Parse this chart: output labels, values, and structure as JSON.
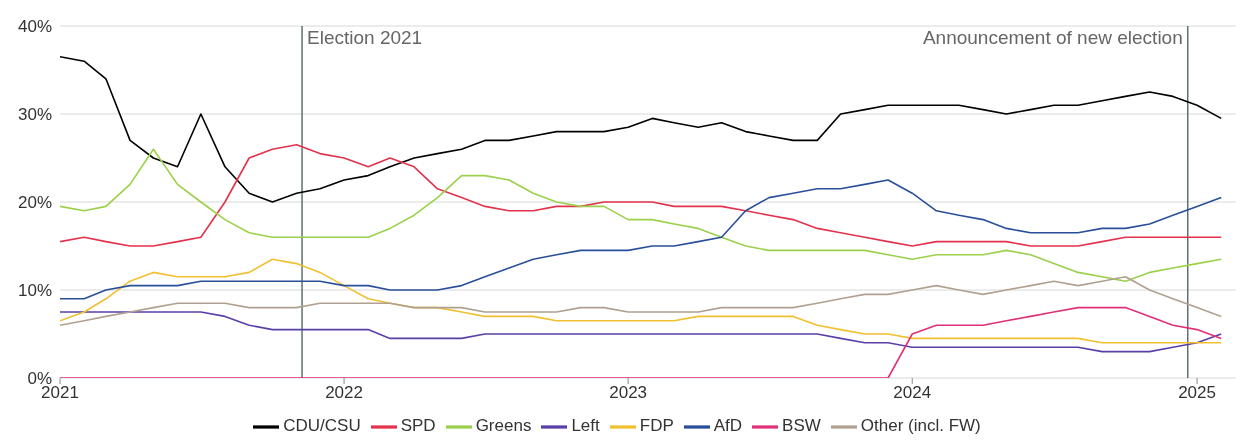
{
  "chart_data": {
    "type": "line",
    "x": [
      "2021-01",
      "2021-02",
      "2021-03",
      "2021-04",
      "2021-05",
      "2021-06",
      "2021-07",
      "2021-08",
      "2021-09",
      "2021-10",
      "2021-11",
      "2021-12",
      "2022-01",
      "2022-02",
      "2022-03",
      "2022-04",
      "2022-05",
      "2022-06",
      "2022-07",
      "2022-08",
      "2022-09",
      "2022-10",
      "2022-11",
      "2022-12",
      "2023-01",
      "2023-02",
      "2023-03",
      "2023-04",
      "2023-05",
      "2023-06",
      "2023-07",
      "2023-08",
      "2023-09",
      "2023-10",
      "2023-11",
      "2023-12",
      "2024-01",
      "2024-02",
      "2024-03",
      "2024-04",
      "2024-05",
      "2024-06",
      "2024-07",
      "2024-08",
      "2024-09",
      "2024-10",
      "2024-11",
      "2024-12",
      "2025-01",
      "2025-02"
    ],
    "series": [
      {
        "name": "CDU/CSU",
        "color": "#000000",
        "values": [
          36.5,
          36,
          34,
          27,
          25,
          24,
          30,
          24,
          21,
          20,
          21,
          21.5,
          22.5,
          23,
          24,
          25,
          25.5,
          26,
          27,
          27,
          27.5,
          28,
          28,
          28,
          28.5,
          29.5,
          29,
          28.5,
          29,
          28,
          27.5,
          27,
          27,
          30,
          30.5,
          31,
          31,
          31,
          31,
          30.5,
          30,
          30.5,
          31,
          31,
          31.5,
          32,
          32.5,
          32,
          31,
          29.5
        ]
      },
      {
        "name": "SPD",
        "color": "#e3324b",
        "values": [
          15.5,
          16,
          15.5,
          15,
          15,
          15.5,
          16,
          20,
          25,
          26,
          26.5,
          25.5,
          25,
          24,
          25,
          24,
          21.5,
          20.5,
          19.5,
          19,
          19,
          19.5,
          19.5,
          20,
          20,
          20,
          19.5,
          19.5,
          19.5,
          19,
          18.5,
          18,
          17,
          16.5,
          16,
          15.5,
          15,
          15.5,
          15.5,
          15.5,
          15.5,
          15,
          15,
          15,
          15.5,
          16,
          16,
          16,
          16,
          16
        ]
      },
      {
        "name": "Greens",
        "color": "#9bd04a",
        "values": [
          19.5,
          19,
          19.5,
          22,
          26,
          22,
          20,
          18,
          16.5,
          16,
          16,
          16,
          16,
          16,
          17,
          18.5,
          20.5,
          23,
          23,
          22.5,
          21,
          20,
          19.5,
          19.5,
          18,
          18,
          17.5,
          17,
          16,
          15,
          14.5,
          14.5,
          14.5,
          14.5,
          14.5,
          14,
          13.5,
          14,
          14,
          14,
          14.5,
          14,
          13,
          12,
          11.5,
          11,
          12,
          12.5,
          13,
          13.5
        ]
      },
      {
        "name": "Left",
        "color": "#5a3fa8",
        "values": [
          7.5,
          7.5,
          7.5,
          7.5,
          7.5,
          7.5,
          7.5,
          7,
          6,
          5.5,
          5.5,
          5.5,
          5.5,
          5.5,
          4.5,
          4.5,
          4.5,
          4.5,
          5,
          5,
          5,
          5,
          5,
          5,
          5,
          5,
          5,
          5,
          5,
          5,
          5,
          5,
          5,
          4.5,
          4,
          4,
          3.5,
          3.5,
          3.5,
          3.5,
          3.5,
          3.5,
          3.5,
          3.5,
          3,
          3,
          3,
          3.5,
          4,
          5
        ]
      },
      {
        "name": "FDP",
        "color": "#f0c030",
        "values": [
          6.5,
          7.5,
          9,
          11,
          12,
          11.5,
          11.5,
          11.5,
          12,
          13.5,
          13,
          12,
          10.5,
          9,
          8.5,
          8,
          8,
          7.5,
          7,
          7,
          7,
          6.5,
          6.5,
          6.5,
          6.5,
          6.5,
          6.5,
          7,
          7,
          7,
          7,
          7,
          6,
          5.5,
          5,
          5,
          4.5,
          4.5,
          4.5,
          4.5,
          4.5,
          4.5,
          4.5,
          4.5,
          4,
          4,
          4,
          4,
          4,
          4
        ]
      },
      {
        "name": "AfD",
        "color": "#2a4f9a",
        "values": [
          9,
          9,
          10,
          10.5,
          10.5,
          10.5,
          11,
          11,
          11,
          11,
          11,
          11,
          10.5,
          10.5,
          10,
          10,
          10,
          10.5,
          11.5,
          12.5,
          13.5,
          14,
          14.5,
          14.5,
          14.5,
          15,
          15,
          15.5,
          16,
          19,
          20.5,
          21,
          21.5,
          21.5,
          22,
          22.5,
          21,
          19,
          18.5,
          18,
          17,
          16.5,
          16.5,
          16.5,
          17,
          17,
          17.5,
          18.5,
          19.5,
          20.5
        ]
      },
      {
        "name": "BSW",
        "color": "#e0307a",
        "values": [
          0,
          0,
          0,
          0,
          0,
          0,
          0,
          0,
          0,
          0,
          0,
          0,
          0,
          0,
          0,
          0,
          0,
          0,
          0,
          0,
          0,
          0,
          0,
          0,
          0,
          0,
          0,
          0,
          0,
          0,
          0,
          0,
          0,
          0,
          0,
          0,
          5,
          6,
          6,
          6,
          6.5,
          7,
          7.5,
          8,
          8,
          8,
          7,
          6,
          5.5,
          4.5
        ]
      },
      {
        "name": "Other (incl. FW)",
        "color": "#b0a090",
        "values": [
          6,
          6.5,
          7,
          7.5,
          8,
          8.5,
          8.5,
          8.5,
          8,
          8,
          8,
          8.5,
          8.5,
          8.5,
          8.5,
          8,
          8,
          8,
          7.5,
          7.5,
          7.5,
          7.5,
          8,
          8,
          7.5,
          7.5,
          7.5,
          7.5,
          8,
          8,
          8,
          8,
          8.5,
          9,
          9.5,
          9.5,
          10,
          10.5,
          10,
          9.5,
          10,
          10.5,
          11,
          10.5,
          11,
          11.5,
          10,
          9,
          8,
          7
        ]
      }
    ],
    "xlim": [
      "2021-01-01",
      "2025-02-20"
    ],
    "xticks": [
      "2021",
      "2022",
      "2023",
      "2024",
      "2025"
    ],
    "ylim": [
      0,
      40
    ],
    "yticks": [
      {
        "value": 0,
        "label": "0%"
      },
      {
        "value": 10,
        "label": "10%"
      },
      {
        "value": 20,
        "label": "20%"
      },
      {
        "value": 30,
        "label": "30%"
      },
      {
        "value": 40,
        "label": "40%"
      }
    ],
    "ref_lines": [
      {
        "axis": "x",
        "value": "2021-11-08",
        "label": "Election 2021",
        "color": "#607070"
      },
      {
        "axis": "x",
        "value": "2024-12-20",
        "label": "Announcement of new election",
        "color": "#607070"
      }
    ],
    "grid": "y",
    "legend": "bottom",
    "marker": "none",
    "line_style": "solid"
  }
}
